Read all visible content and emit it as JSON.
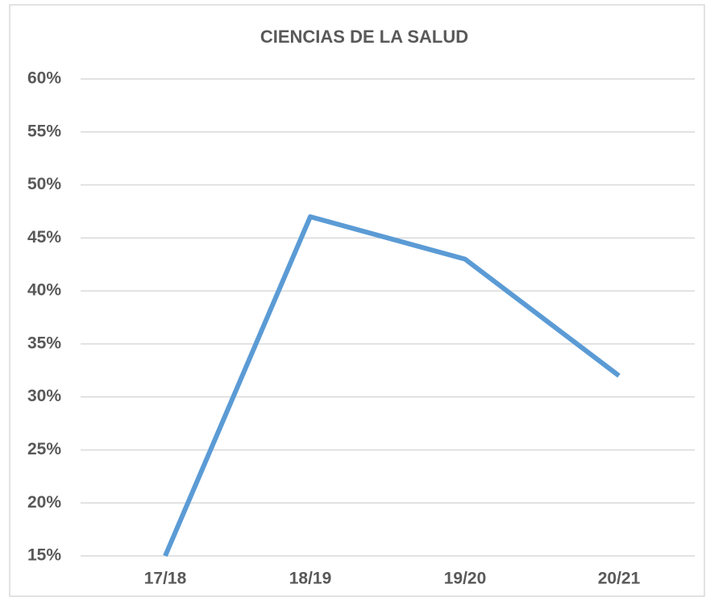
{
  "chart_data": {
    "type": "line",
    "title": "CIENCIAS DE LA SALUD",
    "categories": [
      "17/18",
      "18/19",
      "19/20",
      "20/21"
    ],
    "series": [
      {
        "name": "CIENCIAS DE LA SALUD",
        "color": "#5b9bd5",
        "values": [
          15,
          47,
          43,
          32
        ]
      }
    ],
    "ylim": [
      15,
      60
    ],
    "yticks": [
      {
        "value": 15,
        "label": "15%"
      },
      {
        "value": 20,
        "label": "20%"
      },
      {
        "value": 25,
        "label": "25%"
      },
      {
        "value": 30,
        "label": "30%"
      },
      {
        "value": 35,
        "label": "35%"
      },
      {
        "value": 40,
        "label": "40%"
      },
      {
        "value": 45,
        "label": "45%"
      },
      {
        "value": 50,
        "label": "50%"
      },
      {
        "value": 55,
        "label": "55%"
      },
      {
        "value": 60,
        "label": "60%"
      }
    ],
    "grid": true
  }
}
